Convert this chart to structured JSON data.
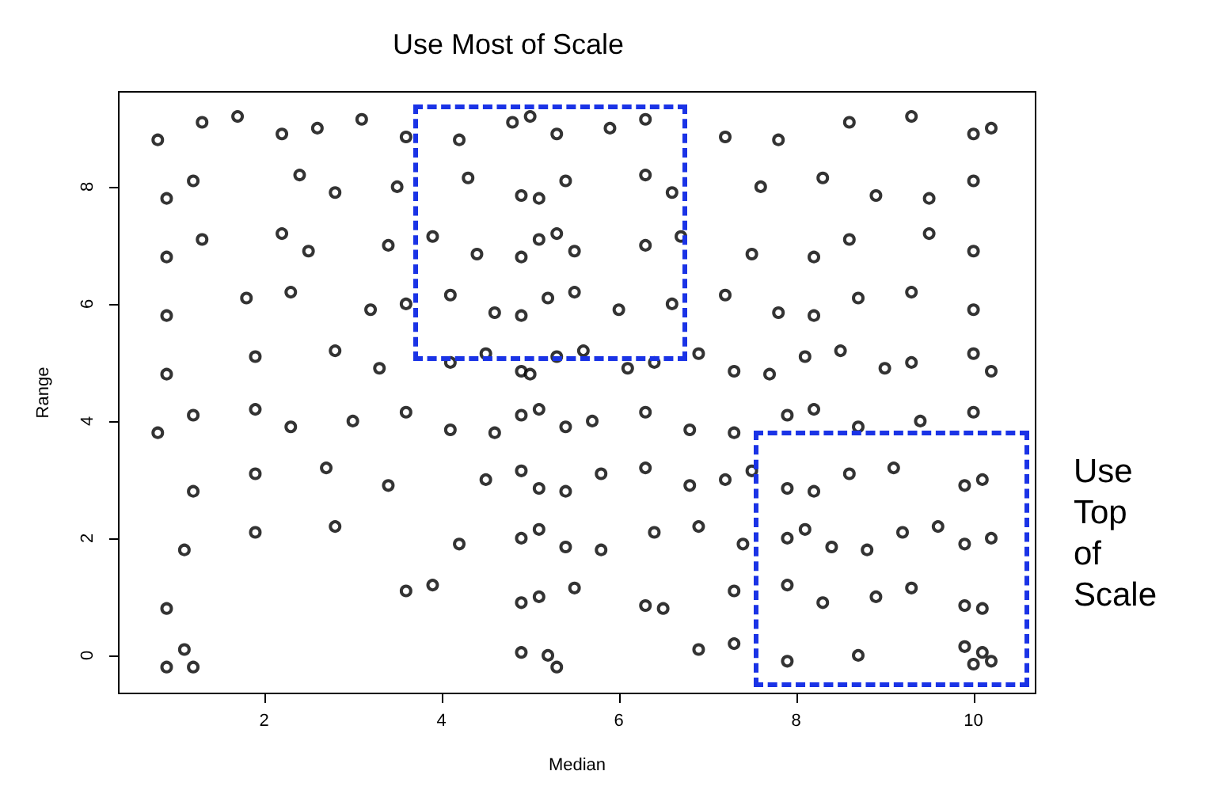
{
  "chart_data": {
    "type": "scatter",
    "title": "Use Most of Scale",
    "xlabel": "Median",
    "ylabel": "Range",
    "annotations": [
      "Use Top of Scale"
    ],
    "xlim": [
      0.36,
      10.7
    ],
    "ylim": [
      -0.65,
      9.62
    ],
    "xticks": [
      2,
      4,
      6,
      8,
      10
    ],
    "yticks": [
      0,
      2,
      4,
      6,
      8
    ],
    "marker": "circle",
    "series": [
      {
        "color": "#000000",
        "x": [
          0.8,
          1.3,
          1.7,
          2.2,
          2.6,
          3.1,
          3.6,
          4.2,
          4.8,
          5.0,
          5.3,
          5.9,
          6.3,
          7.2,
          7.8,
          8.6,
          9.3,
          10.0,
          10.2,
          0.9,
          1.2,
          2.4,
          2.8,
          3.5,
          4.3,
          4.9,
          5.1,
          5.4,
          6.3,
          6.6,
          7.6,
          8.3,
          8.9,
          9.5,
          10.0,
          0.9,
          1.3,
          2.2,
          2.5,
          3.4,
          3.9,
          4.4,
          4.9,
          5.1,
          5.3,
          5.5,
          6.3,
          6.7,
          7.5,
          8.2,
          8.6,
          9.5,
          10.0,
          0.9,
          1.8,
          2.3,
          3.2,
          3.6,
          4.1,
          4.6,
          4.9,
          5.2,
          5.5,
          6.0,
          6.6,
          7.2,
          7.8,
          8.2,
          8.7,
          9.3,
          10.0,
          0.9,
          1.9,
          2.8,
          3.3,
          4.1,
          4.5,
          4.9,
          5.0,
          5.3,
          5.6,
          6.1,
          6.4,
          6.9,
          7.3,
          7.7,
          8.1,
          8.5,
          9.0,
          9.3,
          10.0,
          10.2,
          0.8,
          1.2,
          1.9,
          2.3,
          3.0,
          3.6,
          4.1,
          4.6,
          4.9,
          5.1,
          5.4,
          5.7,
          6.3,
          6.8,
          7.3,
          7.9,
          8.2,
          8.7,
          9.4,
          10.0,
          1.2,
          1.9,
          2.7,
          3.4,
          4.5,
          4.9,
          5.1,
          5.4,
          5.8,
          6.3,
          6.8,
          7.2,
          7.5,
          7.9,
          8.2,
          8.6,
          9.1,
          9.9,
          10.1,
          1.1,
          1.9,
          2.8,
          4.2,
          4.9,
          5.1,
          5.4,
          5.8,
          6.4,
          6.9,
          7.4,
          7.9,
          8.1,
          8.4,
          8.8,
          9.2,
          9.6,
          9.9,
          10.2,
          0.9,
          3.6,
          3.9,
          4.9,
          5.1,
          5.5,
          6.3,
          6.5,
          7.3,
          7.9,
          8.3,
          8.9,
          9.3,
          9.9,
          10.1,
          0.9,
          1.1,
          1.2,
          4.9,
          5.2,
          5.3,
          6.9,
          7.3,
          7.9,
          8.7,
          9.9,
          10.0,
          10.1,
          10.2
        ],
        "values": [
          8.8,
          9.1,
          9.2,
          8.9,
          9.0,
          9.15,
          8.85,
          8.8,
          9.1,
          9.2,
          8.9,
          9.0,
          9.15,
          8.85,
          8.8,
          9.1,
          9.2,
          8.9,
          9.0,
          7.8,
          8.1,
          8.2,
          7.9,
          8.0,
          8.15,
          7.85,
          7.8,
          8.1,
          8.2,
          7.9,
          8.0,
          8.15,
          7.85,
          7.8,
          8.1,
          6.8,
          7.1,
          7.2,
          6.9,
          7.0,
          7.15,
          6.85,
          6.8,
          7.1,
          7.2,
          6.9,
          7.0,
          7.15,
          6.85,
          6.8,
          7.1,
          7.2,
          6.9,
          5.8,
          6.1,
          6.2,
          5.9,
          6.0,
          6.15,
          5.85,
          5.8,
          6.1,
          6.2,
          5.9,
          6.0,
          6.15,
          5.85,
          5.8,
          6.1,
          6.2,
          5.9,
          4.8,
          5.1,
          5.2,
          4.9,
          5.0,
          5.15,
          4.85,
          4.8,
          5.1,
          5.2,
          4.9,
          5.0,
          5.15,
          4.85,
          4.8,
          5.1,
          5.2,
          4.9,
          5.0,
          5.15,
          4.85,
          3.8,
          4.1,
          4.2,
          3.9,
          4.0,
          4.15,
          3.85,
          3.8,
          4.1,
          4.2,
          3.9,
          4.0,
          4.15,
          3.85,
          3.8,
          4.1,
          4.2,
          3.9,
          4.0,
          4.15,
          2.8,
          3.1,
          3.2,
          2.9,
          3.0,
          3.15,
          2.85,
          2.8,
          3.1,
          3.2,
          2.9,
          3.0,
          3.15,
          2.85,
          2.8,
          3.1,
          3.2,
          2.9,
          3.0,
          1.8,
          2.1,
          2.2,
          1.9,
          2.0,
          2.15,
          1.85,
          1.8,
          2.1,
          2.2,
          1.9,
          2.0,
          2.15,
          1.85,
          1.8,
          2.1,
          2.2,
          1.9,
          2.0,
          0.8,
          1.1,
          1.2,
          0.9,
          1.0,
          1.15,
          0.85,
          0.8,
          1.1,
          1.2,
          0.9,
          1.0,
          1.15,
          0.85,
          0.8,
          -0.2,
          0.1,
          -0.2,
          0.05,
          0.0,
          -0.2,
          0.1,
          0.2,
          -0.1,
          0.0,
          0.15,
          -0.15,
          0.05,
          -0.1
        ]
      }
    ]
  }
}
